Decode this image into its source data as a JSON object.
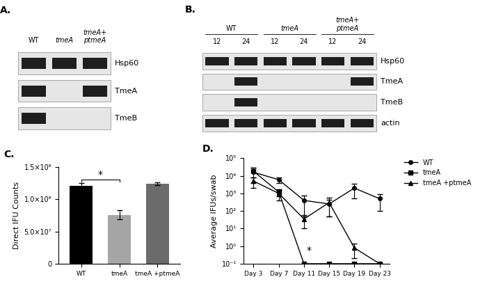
{
  "blots": [
    {
      "title": "A.",
      "lanes": [
        "WT",
        "tmeA",
        "tmeA+\nptmeA"
      ],
      "rows": [
        {
          "name": "Hsp60",
          "bands": [
            true,
            true,
            true
          ]
        },
        {
          "name": "TmeA",
          "bands": [
            true,
            false,
            true
          ]
        },
        {
          "name": "TmeB",
          "bands": [
            true,
            false,
            false
          ]
        }
      ]
    },
    {
      "title": "B.",
      "groups": [
        {
          "name": "WT",
          "lanes": [
            "12",
            "24"
          ]
        },
        {
          "name": "tmeA",
          "lanes": [
            "12",
            "24"
          ]
        },
        {
          "name": "tmeA+\nptmeA",
          "lanes": [
            "12",
            "24"
          ]
        }
      ],
      "rows": [
        {
          "name": "Hsp60",
          "bands": [
            true,
            true,
            true,
            true,
            true,
            true
          ]
        },
        {
          "name": "TmeA",
          "bands": [
            false,
            true,
            false,
            false,
            false,
            true
          ]
        },
        {
          "name": "TmeB",
          "bands": [
            false,
            true,
            false,
            false,
            false,
            false
          ]
        },
        {
          "name": "actin",
          "bands": [
            true,
            true,
            true,
            true,
            true,
            true
          ]
        }
      ]
    }
  ],
  "chart_data": [
    {
      "type": "bar",
      "title": "C.",
      "ylabel": "Direct IFU Counts",
      "categories": [
        "WT",
        "tmeA",
        "tmeA +ptmeA"
      ],
      "values": [
        121000000,
        76000000,
        124000000
      ],
      "errors": [
        4000000,
        7000000,
        2000000
      ],
      "colors": [
        "#000000",
        "#a6a6a6",
        "#6b6b6b"
      ],
      "ylim": [
        0,
        150000000
      ],
      "yticks": [
        0,
        {
          "value": 50000000,
          "label": "5.0×10⁷"
        },
        {
          "value": 100000000,
          "label": "1.0×10⁸"
        },
        {
          "value": 150000000,
          "label": "1.5×10⁸"
        }
      ],
      "significance": {
        "label": "*",
        "categories": [
          "WT",
          "tmeA"
        ]
      }
    },
    {
      "type": "line",
      "title": "D.",
      "ylabel": "Average IFUs/swab",
      "log": "y",
      "legend": "upper right",
      "categories": [
        "Day 3",
        "Day 7",
        "Day 11",
        "Day 15",
        "Day 19",
        "Day 23"
      ],
      "ylim": [
        0.1,
        100000
      ],
      "yticks": [
        {
          "value": 0.1,
          "label": "10⁻¹"
        },
        {
          "value": 1,
          "label": "10⁰"
        },
        {
          "value": 10,
          "label": "10¹"
        },
        {
          "value": 100,
          "label": "10²"
        },
        {
          "value": 1000,
          "label": "10³"
        },
        {
          "value": 10000,
          "label": "10⁴"
        },
        {
          "value": 100000,
          "label": "10⁵"
        }
      ],
      "annotations": [
        {
          "text": "*",
          "category": "Day 11"
        }
      ],
      "series": [
        {
          "name": "WT",
          "color": "#000000",
          "marker": "circle",
          "values": [
            16000,
            6000,
            400,
            250,
            2000,
            500
          ],
          "errors": [
            12000,
            2000,
            350,
            200,
            1500,
            400
          ]
        },
        {
          "name": "tmeA",
          "color": "#000000",
          "marker": "square",
          "values": [
            18000,
            1200,
            0.1,
            0.1,
            0.1,
            0.1
          ],
          "errors": [
            10000,
            500,
            0,
            0,
            0,
            0
          ]
        },
        {
          "name": "tmeA +ptmeA",
          "color": "#000000",
          "marker": "triangle",
          "values": [
            5000,
            1000,
            35,
            300,
            0.8,
            0.1
          ],
          "errors": [
            3000,
            600,
            25,
            250,
            0.6,
            0
          ]
        }
      ]
    }
  ]
}
